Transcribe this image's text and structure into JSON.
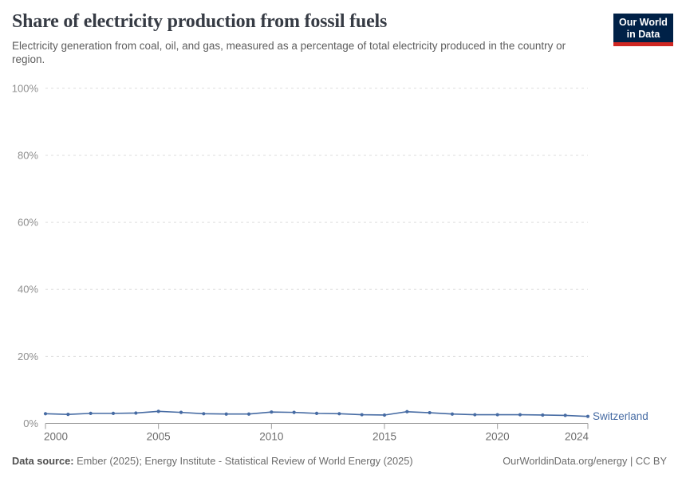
{
  "header": {
    "title": "Share of electricity production from fossil fuels",
    "subtitle": "Electricity generation from coal, oil, and gas, measured as a percentage of total electricity produced in the country or region.",
    "logo": {
      "line1": "Our World",
      "line2": "in Data",
      "bg_color": "#002147",
      "accent_color": "#cf2722"
    }
  },
  "chart_data": {
    "type": "line",
    "title": "Share of electricity production from fossil fuels",
    "xlabel": "",
    "ylabel": "",
    "x": [
      2000,
      2001,
      2002,
      2003,
      2004,
      2005,
      2006,
      2007,
      2008,
      2009,
      2010,
      2011,
      2012,
      2013,
      2014,
      2015,
      2016,
      2017,
      2018,
      2019,
      2020,
      2021,
      2022,
      2023,
      2024
    ],
    "series": [
      {
        "name": "Switzerland",
        "color": "#466ba3",
        "values": [
          2.9,
          2.7,
          3.0,
          3.0,
          3.1,
          3.6,
          3.3,
          2.9,
          2.8,
          2.8,
          3.4,
          3.3,
          3.0,
          2.9,
          2.6,
          2.5,
          3.5,
          3.2,
          2.8,
          2.6,
          2.6,
          2.6,
          2.5,
          2.4,
          2.1
        ]
      }
    ],
    "xlim": [
      2000,
      2024
    ],
    "ylim": [
      0,
      100
    ],
    "yticks": [
      0,
      20,
      40,
      60,
      80,
      100
    ],
    "ytick_suffix": "%",
    "xticks": [
      2000,
      2005,
      2010,
      2015,
      2020,
      2024
    ],
    "grid": "horizontal-dashed",
    "legend_position": "end-of-line"
  },
  "axis_colors": {
    "grid": "#dedede",
    "axis": "#9e9e9e",
    "ytick_label": "#8f8f8f",
    "xtick_label": "#6d6d6d"
  },
  "footer": {
    "datasource_label": "Data source:",
    "datasource_text": " Ember (2025); Energy Institute - Statistical Review of World Energy (2025)",
    "credit": "OurWorldinData.org/energy | CC BY"
  }
}
